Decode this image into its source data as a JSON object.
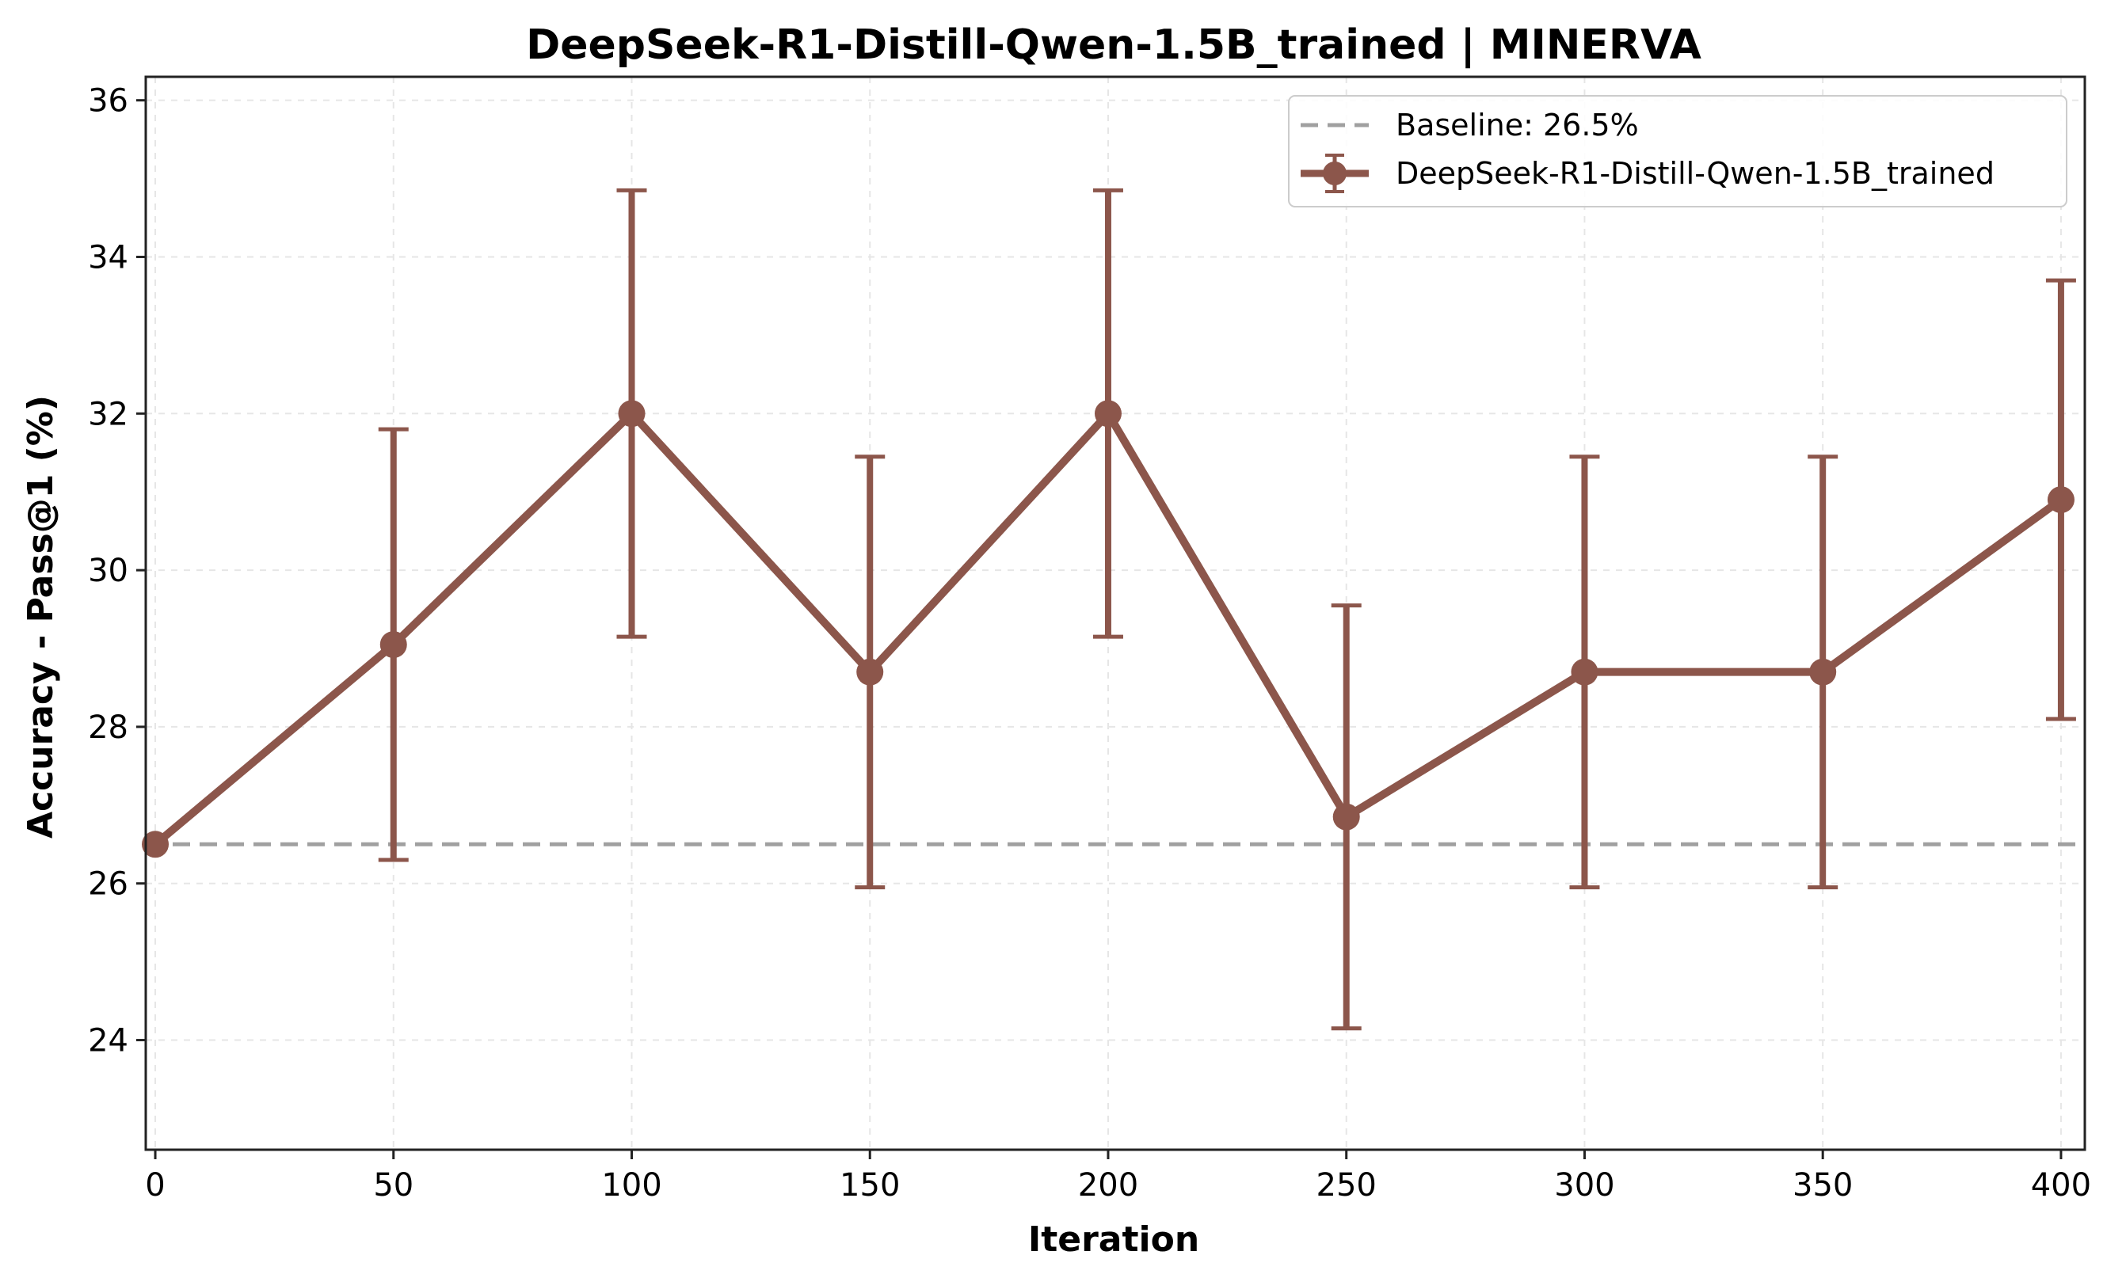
{
  "chart_data": {
    "type": "line",
    "title": "DeepSeek-R1-Distill-Qwen-1.5B_trained | MINERVA",
    "xlabel": "Iteration",
    "ylabel": "Accuracy - Pass@1 (%)",
    "xlim": [
      -2,
      405
    ],
    "ylim": [
      22.6,
      36.3
    ],
    "xticks": [
      0,
      50,
      100,
      150,
      200,
      250,
      300,
      350,
      400
    ],
    "yticks": [
      24,
      26,
      28,
      30,
      32,
      34,
      36
    ],
    "grid": true,
    "legend_position": "top-right",
    "baseline": {
      "label": "Baseline: 26.5%",
      "value": 26.5,
      "color": "#a0a0a0",
      "style": "dashed"
    },
    "series": [
      {
        "name": "DeepSeek-R1-Distill-Qwen-1.5B_trained",
        "color": "#8c564b",
        "x": [
          0,
          50,
          100,
          150,
          200,
          250,
          300,
          350,
          400
        ],
        "y": [
          26.5,
          29.05,
          32.0,
          28.7,
          32.0,
          26.85,
          28.7,
          28.7,
          30.9
        ],
        "error": [
          null,
          2.75,
          2.85,
          2.75,
          2.85,
          2.7,
          2.75,
          2.75,
          2.8
        ]
      }
    ]
  }
}
